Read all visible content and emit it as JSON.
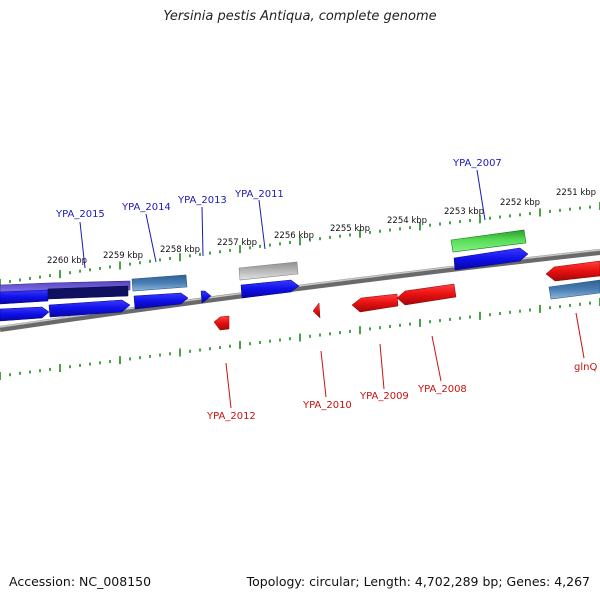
{
  "title": "Yersinia pestis Antiqua, complete genome",
  "footer": {
    "accession": "Accession: NC_008150",
    "summary": "Topology: circular; Length: 4,702,289 bp; Genes: 4,267"
  },
  "colors": {
    "forward_gene": "#1010e8",
    "reverse_gene": "#e81010",
    "blue_label": "#1a1ab8",
    "red_label": "#cc1111",
    "tick": "#1a8a1a",
    "backbone": "#808080",
    "rna_gene": "#4a7fb4",
    "pseudo_gene": "#b0b0b0",
    "green_feature": "#33bb33",
    "purple_feature": "#6655cc"
  },
  "scale_labels": [
    "2260 kbp",
    "2259 kbp",
    "2258 kbp",
    "2257 kbp",
    "2256 kbp",
    "2255 kbp",
    "2254 kbp",
    "2253 kbp",
    "2252 kbp",
    "2251 kbp"
  ],
  "gene_labels_top": [
    "YPA_2015",
    "YPA_2014",
    "YPA_2013",
    "YPA_2011",
    "YPA_2007"
  ],
  "gene_labels_bottom": [
    "YPA_2012",
    "YPA_2010",
    "YPA_2009",
    "YPA_2008",
    "glnQ"
  ]
}
